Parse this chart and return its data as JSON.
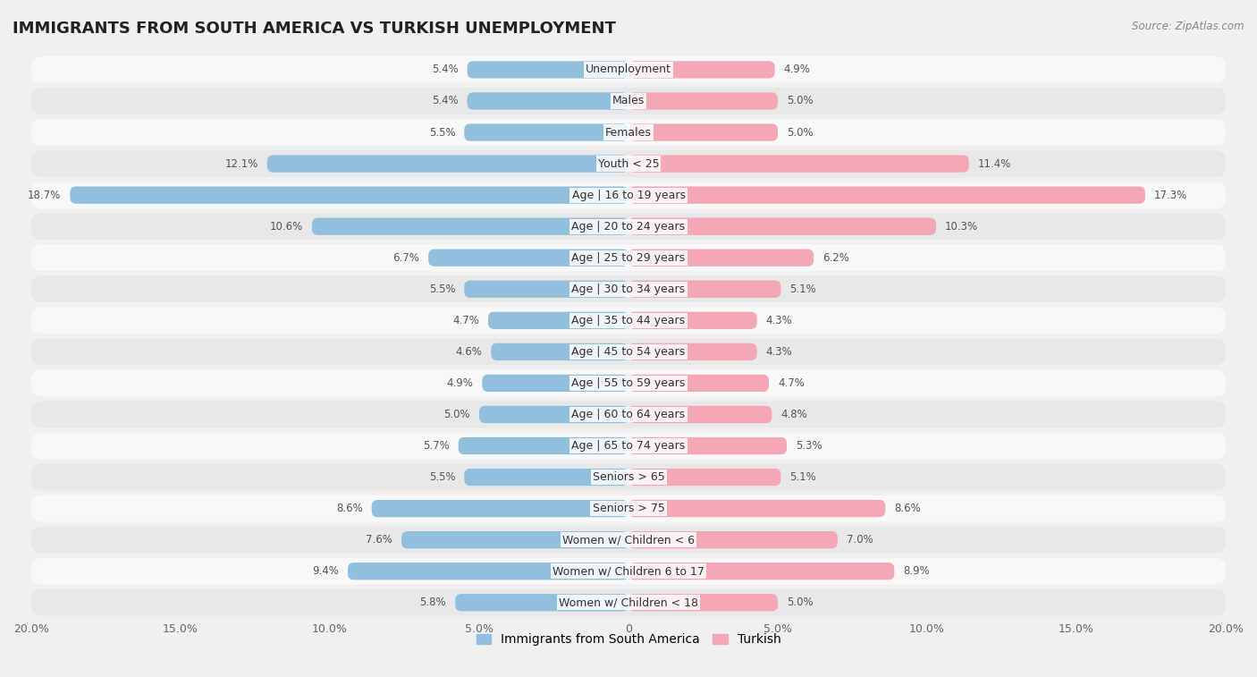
{
  "title": "IMMIGRANTS FROM SOUTH AMERICA VS TURKISH UNEMPLOYMENT",
  "source": "Source: ZipAtlas.com",
  "categories": [
    "Unemployment",
    "Males",
    "Females",
    "Youth < 25",
    "Age | 16 to 19 years",
    "Age | 20 to 24 years",
    "Age | 25 to 29 years",
    "Age | 30 to 34 years",
    "Age | 35 to 44 years",
    "Age | 45 to 54 years",
    "Age | 55 to 59 years",
    "Age | 60 to 64 years",
    "Age | 65 to 74 years",
    "Seniors > 65",
    "Seniors > 75",
    "Women w/ Children < 6",
    "Women w/ Children 6 to 17",
    "Women w/ Children < 18"
  ],
  "left_values": [
    5.4,
    5.4,
    5.5,
    12.1,
    18.7,
    10.6,
    6.7,
    5.5,
    4.7,
    4.6,
    4.9,
    5.0,
    5.7,
    5.5,
    8.6,
    7.6,
    9.4,
    5.8
  ],
  "right_values": [
    4.9,
    5.0,
    5.0,
    11.4,
    17.3,
    10.3,
    6.2,
    5.1,
    4.3,
    4.3,
    4.7,
    4.8,
    5.3,
    5.1,
    8.6,
    7.0,
    8.9,
    5.0
  ],
  "left_color": "#92BFDC",
  "right_color": "#F4A7B4",
  "left_label": "Immigrants from South America",
  "right_label": "Turkish",
  "xlim": 20.0,
  "bg_color": "#f0f0f0",
  "row_color_light": "#f8f8f8",
  "row_color_dark": "#e8e8e8",
  "title_fontsize": 13,
  "label_fontsize": 9.0,
  "value_fontsize": 8.5
}
